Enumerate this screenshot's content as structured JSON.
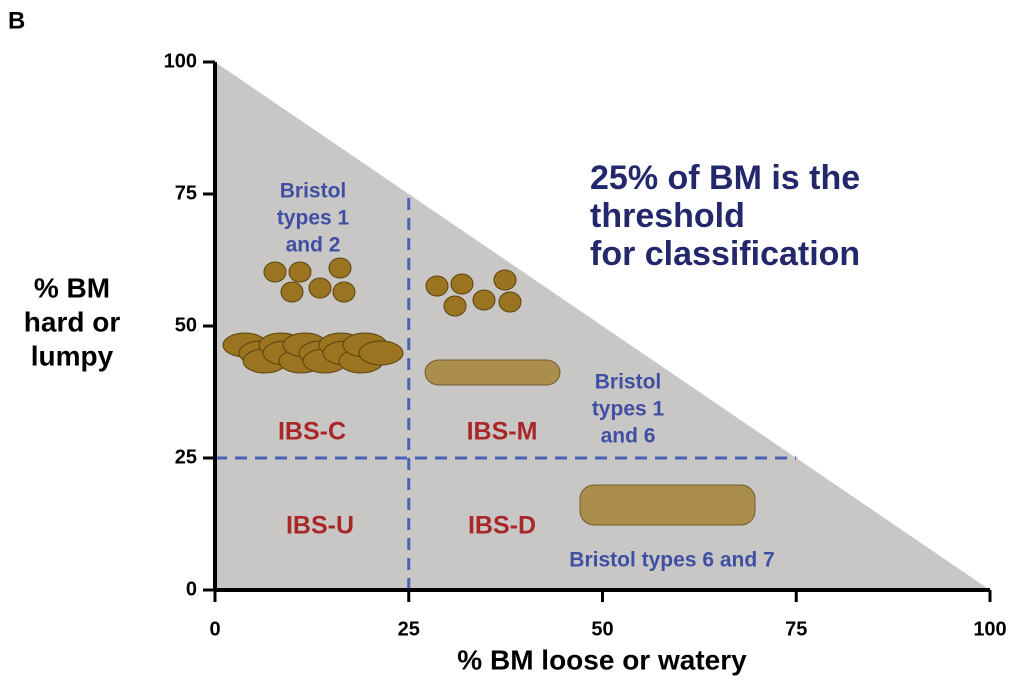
{
  "panel_label": "B",
  "chart_data": {
    "type": "region",
    "xlabel": "% BM loose or watery",
    "ylabel": [
      "% BM",
      "hard or",
      "lumpy"
    ],
    "xlim": [
      0,
      100
    ],
    "ylim": [
      0,
      100
    ],
    "xticks": [
      0,
      25,
      50,
      75,
      100
    ],
    "yticks": [
      0,
      25,
      50,
      75,
      100
    ],
    "threshold": 25,
    "regions": [
      "IBS-C",
      "IBS-M",
      "IBS-U",
      "IBS-D"
    ],
    "annotations": [
      [
        "Bristol",
        "types 1",
        "and 2"
      ],
      [
        "Bristol",
        "types 1",
        "and 6"
      ],
      [
        "Bristol types 6 and 7"
      ]
    ],
    "headline": [
      "25% of BM is the",
      "threshold",
      "for classification"
    ]
  }
}
